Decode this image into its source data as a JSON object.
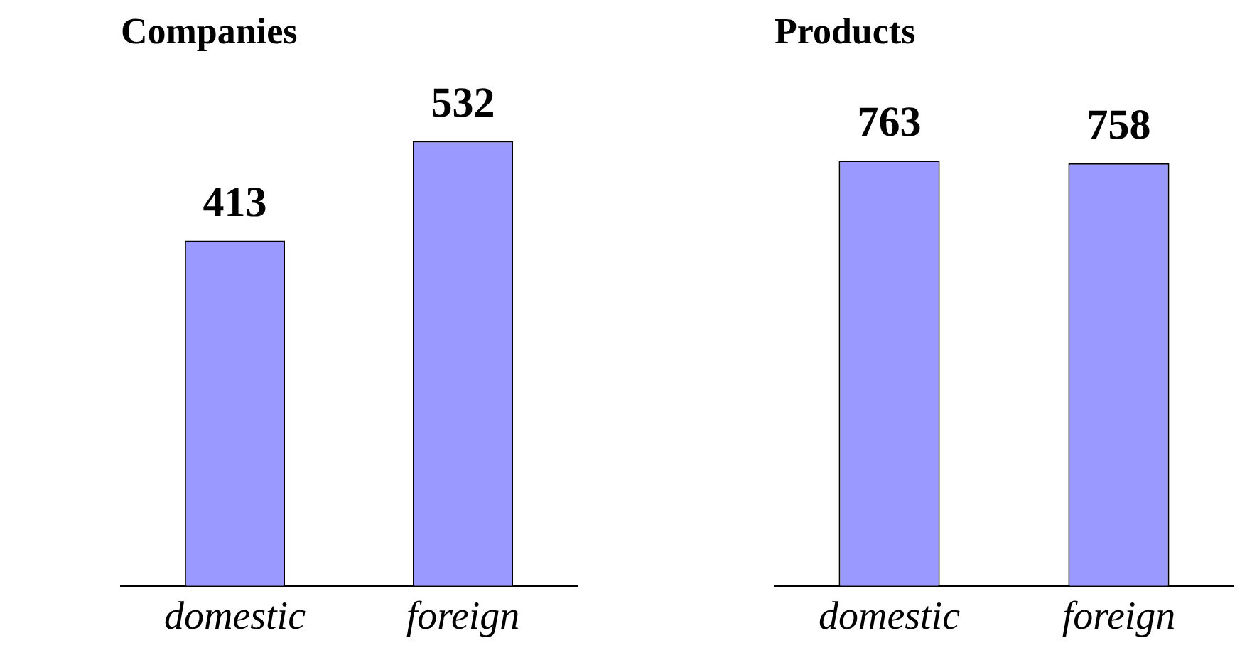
{
  "chart_data": [
    {
      "type": "bar",
      "title": "Companies",
      "categories": [
        "domestic",
        "foreign"
      ],
      "values": [
        413,
        532
      ],
      "color": "#9999ff",
      "data_labels": true
    },
    {
      "type": "bar",
      "title": "Products",
      "categories": [
        "domestic",
        "foreign"
      ],
      "values": [
        763,
        758
      ],
      "color": "#9999ff",
      "data_labels": true
    }
  ]
}
